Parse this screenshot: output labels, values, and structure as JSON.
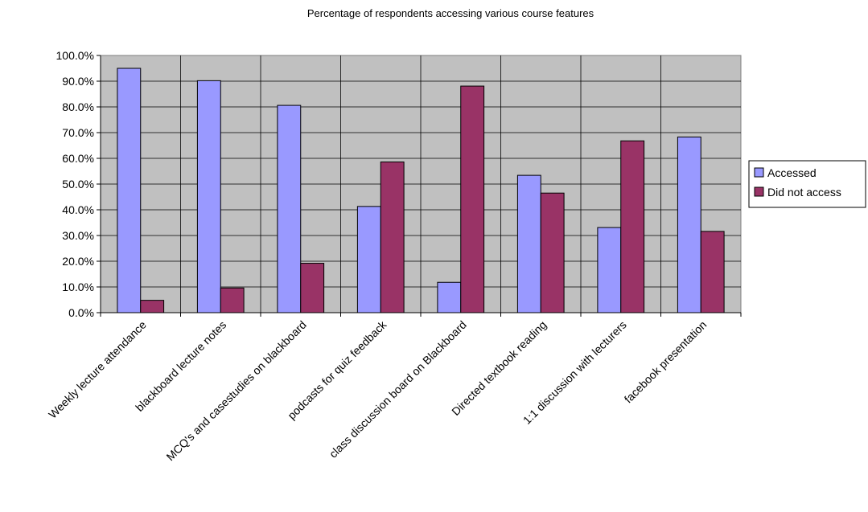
{
  "chart_data": {
    "type": "bar",
    "title": "Percentage of respondents accessing various course features",
    "xlabel": "",
    "ylabel": "",
    "categories": [
      "Weekly lecture attendance",
      "blackboard lecture notes",
      "MCQ's and casestudies on blackboard",
      "podcasts for quiz feedback",
      "class discussion board on Blackboard",
      "Directed textbook reading",
      "1:1 discussion with lecturers",
      "facebook presentation"
    ],
    "series": [
      {
        "name": "Accessed",
        "color": "#9999ff",
        "values": [
          95.0,
          90.2,
          80.6,
          41.3,
          11.8,
          53.4,
          33.1,
          68.3
        ]
      },
      {
        "name": "Did not access",
        "color": "#993366",
        "values": [
          4.8,
          9.6,
          19.2,
          58.6,
          88.1,
          46.5,
          66.8,
          31.6
        ]
      }
    ],
    "ylim": [
      0,
      100
    ],
    "yticks": [
      "0.0%",
      "10.0%",
      "20.0%",
      "30.0%",
      "40.0%",
      "50.0%",
      "60.0%",
      "70.0%",
      "80.0%",
      "90.0%",
      "100.0%"
    ],
    "grid": true,
    "plot_background": "#c0c0c0",
    "legend": "right"
  }
}
